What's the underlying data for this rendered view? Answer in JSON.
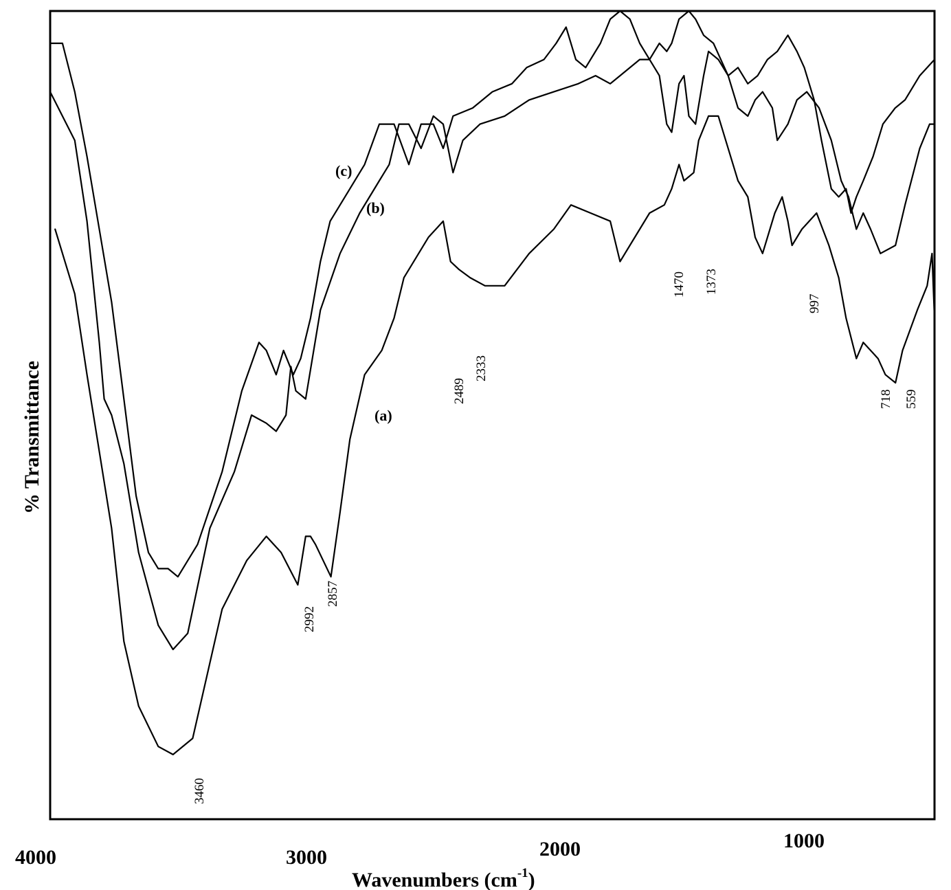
{
  "chart_data": {
    "type": "line",
    "title": "",
    "xlabel": "Wavenumbers (cm",
    "xlabel_sup": "-1",
    "xlabel_close": ")",
    "ylabel": "% Transmittance",
    "xlim": [
      4000,
      400
    ],
    "x_reversed": true,
    "y_ticks_shown": false,
    "grid": false,
    "legend": "none",
    "x_ticks": [
      4000,
      3000,
      2000,
      1000
    ],
    "x_tick_labels": [
      "4000",
      "3000",
      "2000",
      "1000"
    ],
    "series": [
      {
        "name": "(a)",
        "points": [
          [
            3980,
            0.73
          ],
          [
            3900,
            0.65
          ],
          [
            3850,
            0.55
          ],
          [
            3750,
            0.36
          ],
          [
            3700,
            0.22
          ],
          [
            3640,
            0.14
          ],
          [
            3560,
            0.09
          ],
          [
            3500,
            0.08
          ],
          [
            3420,
            0.1
          ],
          [
            3300,
            0.26
          ],
          [
            3200,
            0.32
          ],
          [
            3120,
            0.35
          ],
          [
            3060,
            0.33
          ],
          [
            2992,
            0.29
          ],
          [
            2960,
            0.35
          ],
          [
            2940,
            0.35
          ],
          [
            2920,
            0.34
          ],
          [
            2857,
            0.3
          ],
          [
            2820,
            0.38
          ],
          [
            2780,
            0.47
          ],
          [
            2720,
            0.55
          ],
          [
            2650,
            0.58
          ],
          [
            2600,
            0.62
          ],
          [
            2560,
            0.67
          ],
          [
            2520,
            0.69
          ],
          [
            2460,
            0.72
          ],
          [
            2400,
            0.74
          ],
          [
            2370,
            0.69
          ],
          [
            2335,
            0.68
          ],
          [
            2290,
            0.67
          ],
          [
            2230,
            0.66
          ],
          [
            2150,
            0.66
          ],
          [
            2050,
            0.7
          ],
          [
            1950,
            0.73
          ],
          [
            1880,
            0.76
          ],
          [
            1800,
            0.75
          ],
          [
            1720,
            0.74
          ],
          [
            1680,
            0.69
          ],
          [
            1640,
            0.71
          ],
          [
            1560,
            0.75
          ],
          [
            1500,
            0.76
          ],
          [
            1470,
            0.78
          ],
          [
            1440,
            0.81
          ],
          [
            1420,
            0.79
          ],
          [
            1380,
            0.8
          ],
          [
            1360,
            0.84
          ],
          [
            1320,
            0.87
          ],
          [
            1280,
            0.87
          ],
          [
            1240,
            0.83
          ],
          [
            1200,
            0.79
          ],
          [
            1160,
            0.77
          ],
          [
            1130,
            0.72
          ],
          [
            1100,
            0.7
          ],
          [
            1050,
            0.75
          ],
          [
            1020,
            0.77
          ],
          [
            997,
            0.74
          ],
          [
            980,
            0.71
          ],
          [
            940,
            0.73
          ],
          [
            880,
            0.75
          ],
          [
            830,
            0.71
          ],
          [
            790,
            0.67
          ],
          [
            760,
            0.62
          ],
          [
            718,
            0.57
          ],
          [
            690,
            0.59
          ],
          [
            660,
            0.58
          ],
          [
            630,
            0.57
          ],
          [
            600,
            0.55
          ],
          [
            559,
            0.54
          ],
          [
            530,
            0.58
          ],
          [
            470,
            0.63
          ],
          [
            430,
            0.66
          ],
          [
            410,
            0.7
          ],
          [
            400,
            0.62
          ]
        ]
      },
      {
        "name": "(b)",
        "points": [
          [
            4000,
            0.9
          ],
          [
            3900,
            0.84
          ],
          [
            3850,
            0.74
          ],
          [
            3800,
            0.59
          ],
          [
            3780,
            0.52
          ],
          [
            3750,
            0.5
          ],
          [
            3700,
            0.44
          ],
          [
            3640,
            0.33
          ],
          [
            3560,
            0.24
          ],
          [
            3500,
            0.21
          ],
          [
            3440,
            0.23
          ],
          [
            3350,
            0.36
          ],
          [
            3250,
            0.43
          ],
          [
            3180,
            0.5
          ],
          [
            3120,
            0.49
          ],
          [
            3080,
            0.48
          ],
          [
            3040,
            0.5
          ],
          [
            3020,
            0.56
          ],
          [
            3000,
            0.53
          ],
          [
            2960,
            0.52
          ],
          [
            2900,
            0.63
          ],
          [
            2820,
            0.7
          ],
          [
            2740,
            0.75
          ],
          [
            2660,
            0.79
          ],
          [
            2620,
            0.81
          ],
          [
            2580,
            0.86
          ],
          [
            2540,
            0.86
          ],
          [
            2490,
            0.83
          ],
          [
            2440,
            0.87
          ],
          [
            2400,
            0.86
          ],
          [
            2360,
            0.8
          ],
          [
            2320,
            0.84
          ],
          [
            2250,
            0.86
          ],
          [
            2150,
            0.87
          ],
          [
            2050,
            0.89
          ],
          [
            1950,
            0.9
          ],
          [
            1850,
            0.91
          ],
          [
            1780,
            0.92
          ],
          [
            1720,
            0.91
          ],
          [
            1680,
            0.92
          ],
          [
            1600,
            0.94
          ],
          [
            1560,
            0.94
          ],
          [
            1520,
            0.92
          ],
          [
            1490,
            0.86
          ],
          [
            1470,
            0.85
          ],
          [
            1440,
            0.91
          ],
          [
            1420,
            0.92
          ],
          [
            1400,
            0.87
          ],
          [
            1373,
            0.86
          ],
          [
            1340,
            0.92
          ],
          [
            1320,
            0.95
          ],
          [
            1280,
            0.94
          ],
          [
            1240,
            0.92
          ],
          [
            1200,
            0.88
          ],
          [
            1160,
            0.87
          ],
          [
            1130,
            0.89
          ],
          [
            1100,
            0.9
          ],
          [
            1060,
            0.88
          ],
          [
            1040,
            0.84
          ],
          [
            997,
            0.86
          ],
          [
            960,
            0.89
          ],
          [
            920,
            0.9
          ],
          [
            870,
            0.88
          ],
          [
            820,
            0.84
          ],
          [
            780,
            0.79
          ],
          [
            750,
            0.77
          ],
          [
            718,
            0.73
          ],
          [
            690,
            0.75
          ],
          [
            660,
            0.73
          ],
          [
            620,
            0.7
          ],
          [
            559,
            0.71
          ],
          [
            520,
            0.76
          ],
          [
            460,
            0.83
          ],
          [
            420,
            0.86
          ],
          [
            400,
            0.86
          ]
        ]
      },
      {
        "name": "(c)",
        "points": [
          [
            4000,
            0.96
          ],
          [
            3950,
            0.96
          ],
          [
            3900,
            0.9
          ],
          [
            3850,
            0.82
          ],
          [
            3800,
            0.73
          ],
          [
            3750,
            0.64
          ],
          [
            3700,
            0.52
          ],
          [
            3650,
            0.4
          ],
          [
            3600,
            0.33
          ],
          [
            3560,
            0.31
          ],
          [
            3520,
            0.31
          ],
          [
            3480,
            0.3
          ],
          [
            3400,
            0.34
          ],
          [
            3300,
            0.43
          ],
          [
            3220,
            0.53
          ],
          [
            3150,
            0.59
          ],
          [
            3120,
            0.58
          ],
          [
            3080,
            0.55
          ],
          [
            3050,
            0.58
          ],
          [
            3010,
            0.55
          ],
          [
            2980,
            0.57
          ],
          [
            2940,
            0.62
          ],
          [
            2900,
            0.69
          ],
          [
            2860,
            0.74
          ],
          [
            2820,
            0.76
          ],
          [
            2780,
            0.78
          ],
          [
            2720,
            0.81
          ],
          [
            2660,
            0.86
          ],
          [
            2600,
            0.86
          ],
          [
            2540,
            0.81
          ],
          [
            2490,
            0.86
          ],
          [
            2440,
            0.86
          ],
          [
            2400,
            0.83
          ],
          [
            2360,
            0.87
          ],
          [
            2280,
            0.88
          ],
          [
            2200,
            0.9
          ],
          [
            2120,
            0.91
          ],
          [
            2060,
            0.93
          ],
          [
            1990,
            0.94
          ],
          [
            1940,
            0.96
          ],
          [
            1900,
            0.98
          ],
          [
            1860,
            0.94
          ],
          [
            1820,
            0.93
          ],
          [
            1760,
            0.96
          ],
          [
            1720,
            0.99
          ],
          [
            1680,
            1.0
          ],
          [
            1640,
            0.99
          ],
          [
            1600,
            0.96
          ],
          [
            1560,
            0.94
          ],
          [
            1520,
            0.96
          ],
          [
            1490,
            0.95
          ],
          [
            1470,
            0.96
          ],
          [
            1440,
            0.99
          ],
          [
            1400,
            1.0
          ],
          [
            1373,
            0.99
          ],
          [
            1340,
            0.97
          ],
          [
            1300,
            0.96
          ],
          [
            1270,
            0.94
          ],
          [
            1240,
            0.92
          ],
          [
            1200,
            0.93
          ],
          [
            1160,
            0.91
          ],
          [
            1120,
            0.92
          ],
          [
            1080,
            0.94
          ],
          [
            1040,
            0.95
          ],
          [
            997,
            0.97
          ],
          [
            960,
            0.95
          ],
          [
            930,
            0.93
          ],
          [
            890,
            0.89
          ],
          [
            860,
            0.84
          ],
          [
            820,
            0.78
          ],
          [
            790,
            0.77
          ],
          [
            760,
            0.78
          ],
          [
            740,
            0.75
          ],
          [
            718,
            0.77
          ],
          [
            690,
            0.79
          ],
          [
            650,
            0.82
          ],
          [
            610,
            0.86
          ],
          [
            560,
            0.88
          ],
          [
            520,
            0.89
          ],
          [
            460,
            0.92
          ],
          [
            400,
            0.94
          ]
        ]
      }
    ],
    "series_labels": [
      "(a)",
      "(b)",
      "(c)"
    ],
    "peak_annotations": [
      "3460",
      "2992",
      "2857",
      "2489",
      "2333",
      "1470",
      "1373",
      "997",
      "718",
      "559"
    ]
  }
}
